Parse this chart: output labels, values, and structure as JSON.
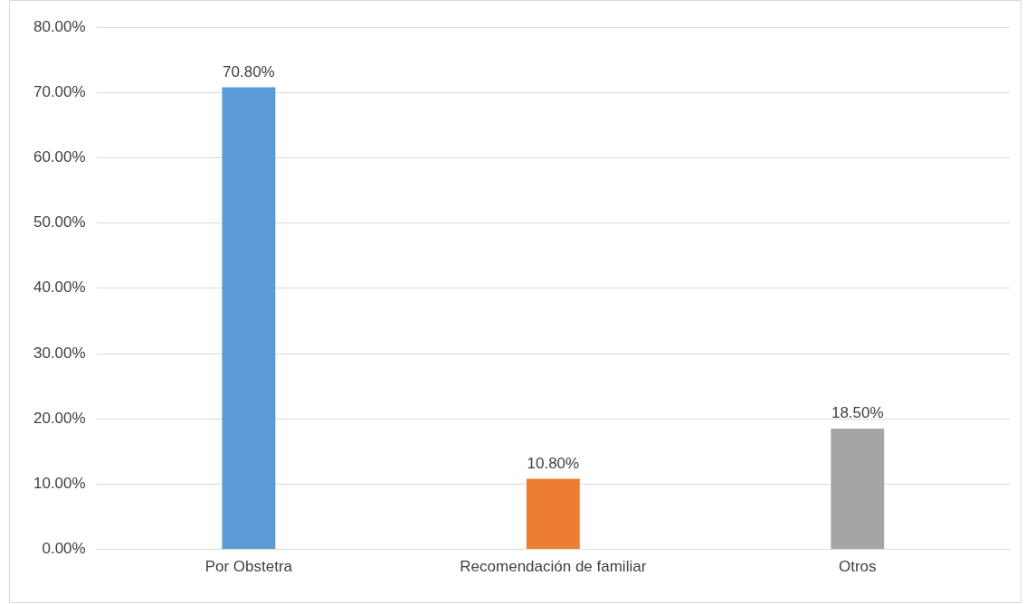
{
  "chart_data": {
    "type": "bar",
    "categories": [
      "Por Obstetra",
      "Recomendación de familiar",
      "Otros"
    ],
    "values": [
      70.8,
      10.8,
      18.5
    ],
    "colors": [
      "#5b9bd5",
      "#ed7d31",
      "#a5a5a5"
    ],
    "value_labels": [
      "70.80%",
      "10.80%",
      "18.50%"
    ],
    "ylim": [
      0,
      80
    ],
    "yticks": [
      {
        "value": 0,
        "label": "0.00%"
      },
      {
        "value": 10,
        "label": "10.00%"
      },
      {
        "value": 20,
        "label": "20.00%"
      },
      {
        "value": 30,
        "label": "30.00%"
      },
      {
        "value": 40,
        "label": "40.00%"
      },
      {
        "value": 50,
        "label": "50.00%"
      },
      {
        "value": 60,
        "label": "60.00%"
      },
      {
        "value": 70,
        "label": "70.00%"
      },
      {
        "value": 80,
        "label": "80.00%"
      }
    ],
    "grid": "y",
    "legend": false
  }
}
